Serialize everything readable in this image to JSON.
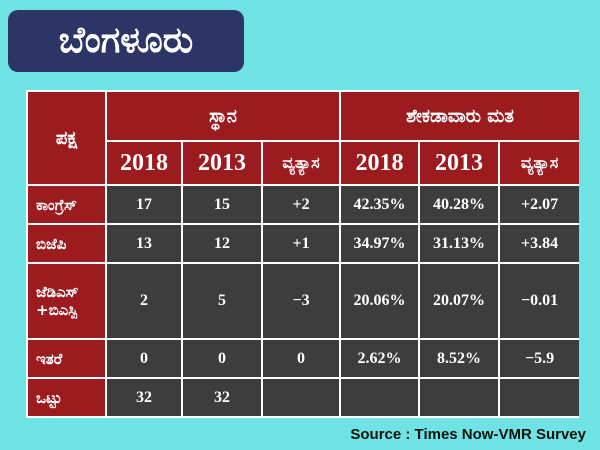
{
  "title": "ಬೆಂಗಳೂರು",
  "table": {
    "party_header": "ಪಕ್ಷ",
    "seats_header": "ಸ್ಥಾನ",
    "vote_header": "ಶೇಕಡಾವಾರು ಮತ",
    "sub_headers": [
      "2018",
      "2013",
      "ವ್ಯತ್ಯಾಸ",
      "2018",
      "2013",
      "ವ್ಯತ್ಯಾಸ"
    ],
    "rows": [
      {
        "party": "ಕಾಂಗ್ರೆಸ್",
        "values": [
          "17",
          "15",
          "+2",
          "42.35%",
          "40.28%",
          "+2.07"
        ]
      },
      {
        "party": "ಬಿಜೆಪಿ",
        "values": [
          "13",
          "12",
          "+1",
          "34.97%",
          "31.13%",
          "+3.84"
        ]
      },
      {
        "party": "ಜೆಡಿಎಸ್ +ಬಿಎಸ್ಪಿ",
        "values": [
          "2",
          "5",
          "−3",
          "20.06%",
          "20.07%",
          "−0.01"
        ]
      },
      {
        "party": "ಇತರೆ",
        "values": [
          "0",
          "0",
          "0",
          "2.62%",
          "8.52%",
          "−5.9"
        ]
      },
      {
        "party": "ಒಟ್ಟು",
        "values": [
          "32",
          "32",
          "",
          "",
          "",
          ""
        ]
      }
    ]
  },
  "source": "Source : Times Now-VMR Survey",
  "colors": {
    "background": "#6fe3e3",
    "title_box": "#2c3566",
    "header_red": "#9b1b1f",
    "cell_dark": "#3d3d3d"
  }
}
